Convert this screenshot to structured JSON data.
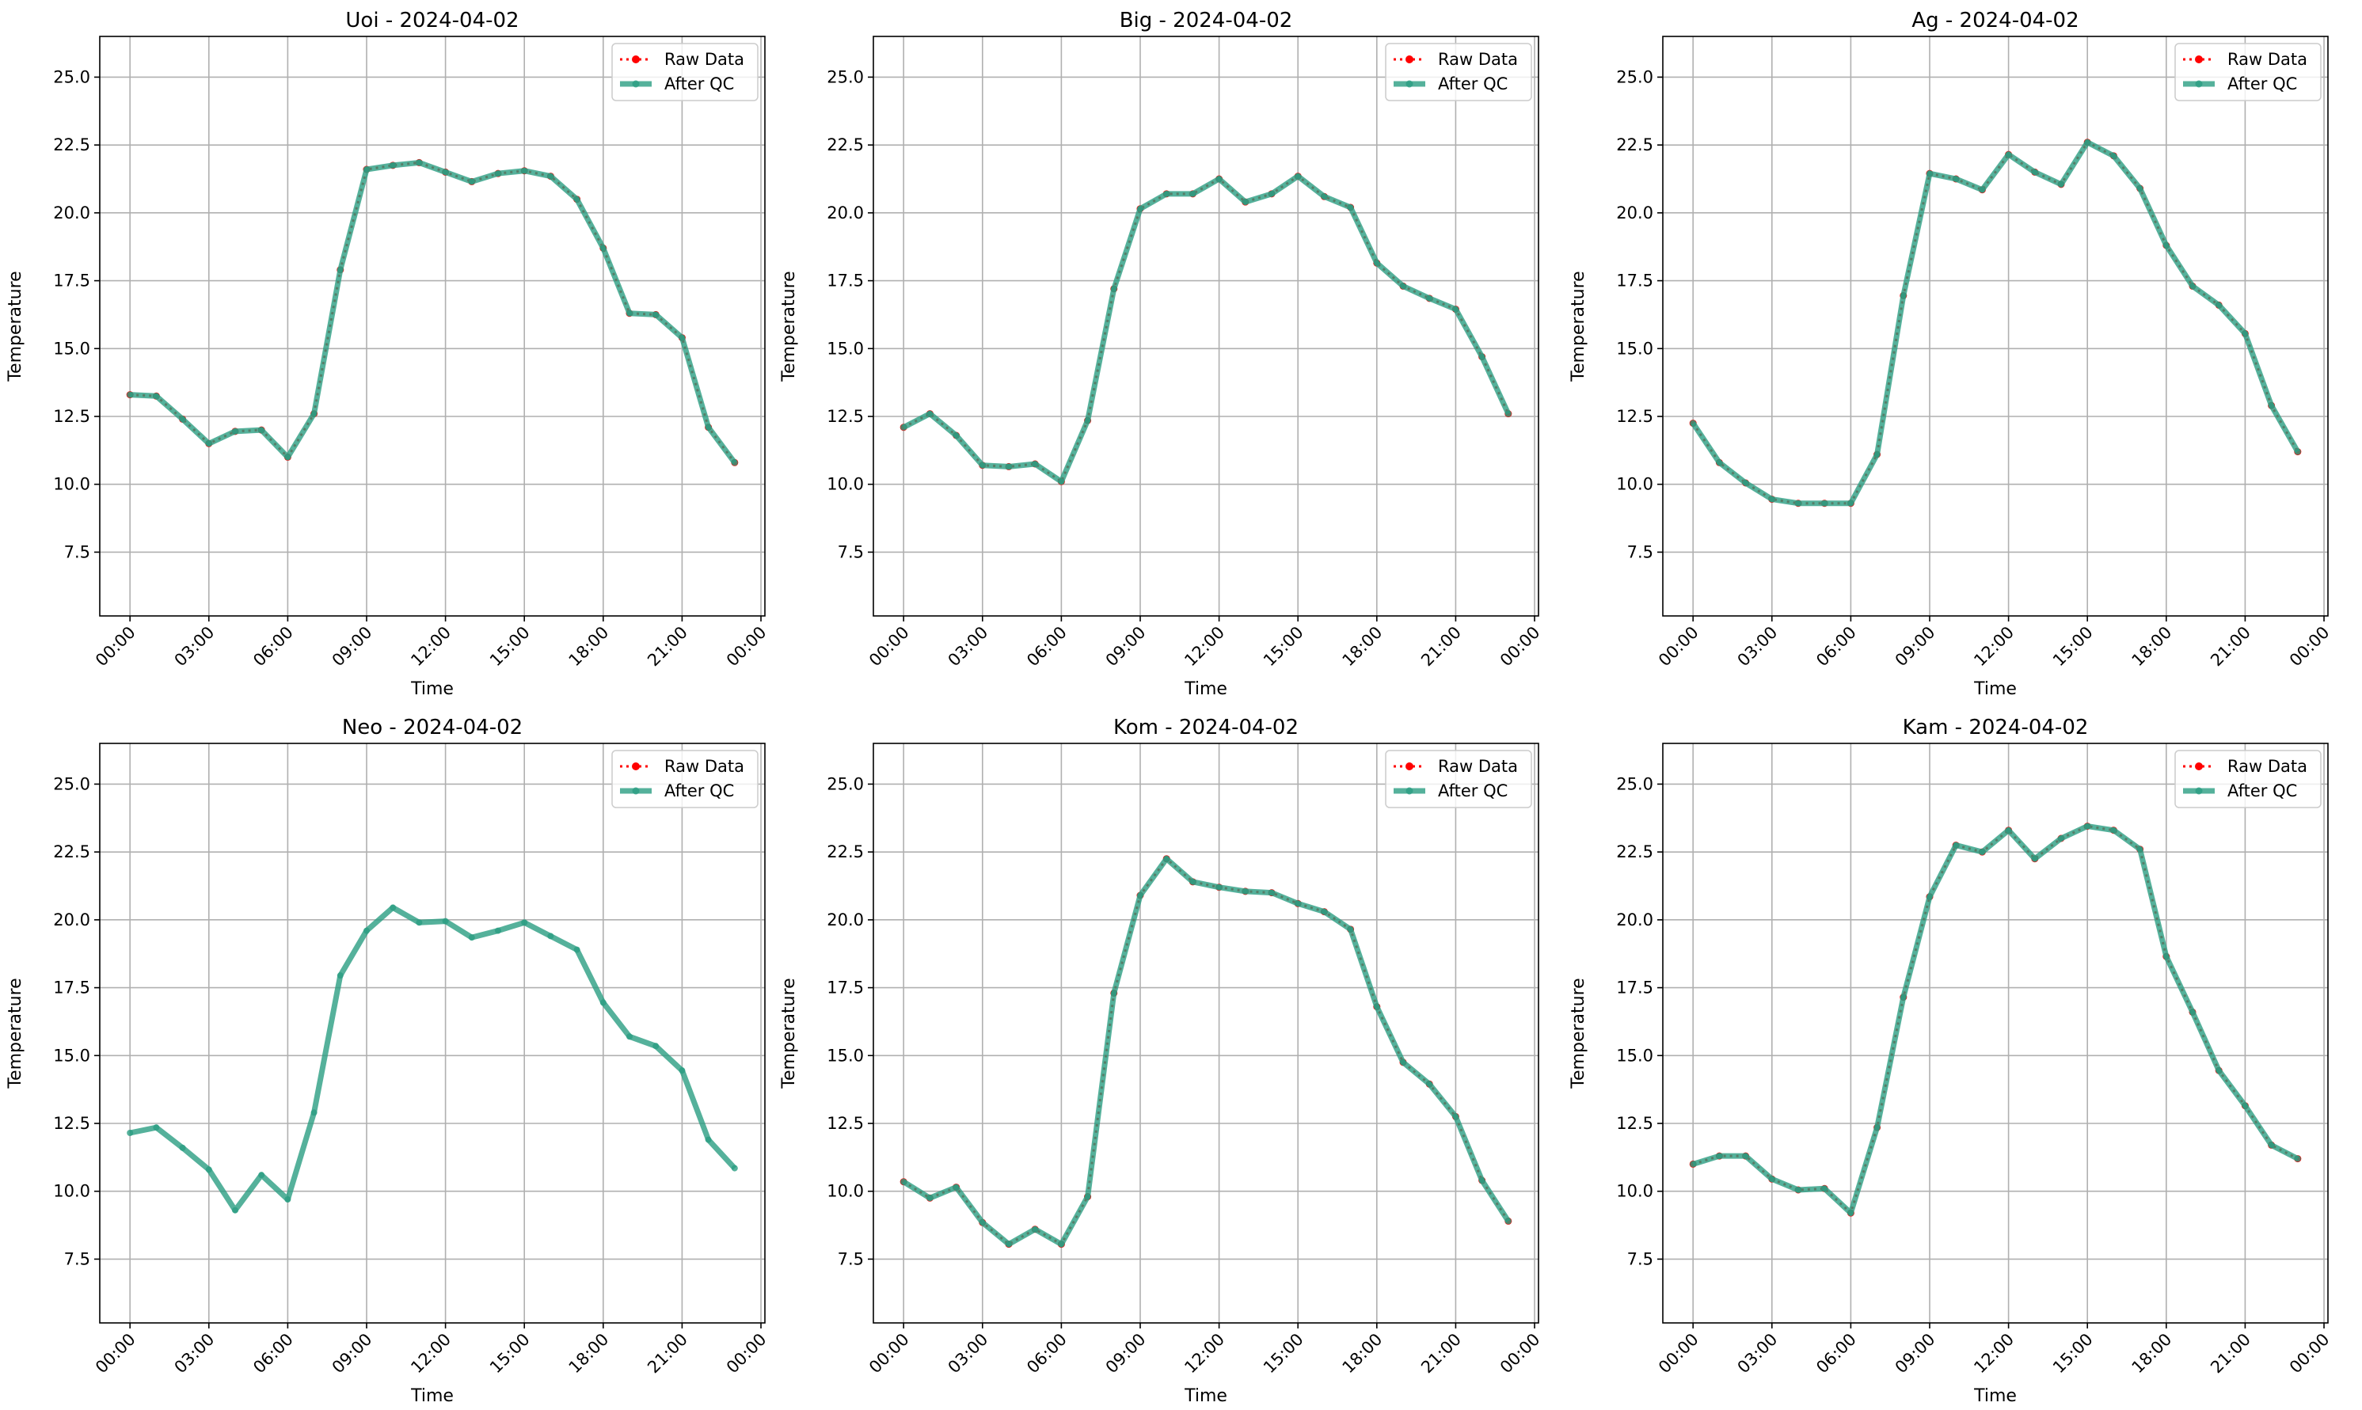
{
  "chart_data": [
    {
      "type": "line",
      "title": "Uoi - 2024-04-02",
      "xlabel": "Time",
      "ylabel": "Temperature",
      "x": [
        0,
        1,
        2,
        3,
        4,
        5,
        6,
        7,
        8,
        9,
        10,
        11,
        12,
        13,
        14,
        15,
        16,
        17,
        18,
        19,
        20,
        21,
        22,
        23
      ],
      "series": [
        {
          "name": "Raw Data",
          "color": "#ff0000",
          "values": [
            13.3,
            13.25,
            12.4,
            11.5,
            11.95,
            12.0,
            11.0,
            12.6,
            17.9,
            21.6,
            21.75,
            21.85,
            21.5,
            21.15,
            21.45,
            21.55,
            21.35,
            20.5,
            18.7,
            16.3,
            16.25,
            15.4,
            12.1,
            10.8
          ]
        },
        {
          "name": "After QC",
          "color": "#2a9d82",
          "values": [
            13.3,
            13.25,
            12.4,
            11.5,
            11.95,
            12.0,
            11.0,
            12.6,
            17.9,
            21.6,
            21.75,
            21.85,
            21.5,
            21.15,
            21.45,
            21.55,
            21.35,
            20.5,
            18.7,
            16.3,
            16.25,
            15.4,
            12.1,
            10.8
          ]
        }
      ],
      "xlim": [
        -1.15,
        24.15
      ],
      "xticks": [
        {
          "value": 0,
          "label": "00:00"
        },
        {
          "value": 3,
          "label": "03:00"
        },
        {
          "value": 6,
          "label": "06:00"
        },
        {
          "value": 9,
          "label": "09:00"
        },
        {
          "value": 12,
          "label": "12:00"
        },
        {
          "value": 15,
          "label": "15:00"
        },
        {
          "value": 18,
          "label": "18:00"
        },
        {
          "value": 21,
          "label": "21:00"
        },
        {
          "value": 24,
          "label": "00:00"
        }
      ],
      "ylim": [
        5.15,
        26.5
      ],
      "yticks": [
        7.5,
        {
          "value": 10,
          "label": "10.0"
        },
        12.5,
        {
          "value": 15,
          "label": "15.0"
        },
        17.5,
        {
          "value": 20,
          "label": "20.0"
        },
        22.5,
        {
          "value": 25,
          "label": "25.0"
        }
      ],
      "grid": true,
      "legend": "upper right"
    },
    {
      "type": "line",
      "title": "Big - 2024-04-02",
      "xlabel": "Time",
      "ylabel": "Temperature",
      "x": [
        0,
        1,
        2,
        3,
        4,
        5,
        6,
        7,
        8,
        9,
        10,
        11,
        12,
        13,
        14,
        15,
        16,
        17,
        18,
        19,
        20,
        21,
        22,
        23
      ],
      "series": [
        {
          "name": "Raw Data",
          "color": "#ff0000",
          "values": [
            12.1,
            12.6,
            11.8,
            10.7,
            10.65,
            10.75,
            10.1,
            12.35,
            17.2,
            20.15,
            20.7,
            20.7,
            21.25,
            20.4,
            20.7,
            21.35,
            20.6,
            20.2,
            18.15,
            17.3,
            16.85,
            16.45,
            14.7,
            12.6
          ]
        },
        {
          "name": "After QC",
          "color": "#2a9d82",
          "values": [
            12.1,
            12.6,
            11.8,
            10.7,
            10.65,
            10.75,
            10.1,
            12.35,
            17.2,
            20.15,
            20.7,
            20.7,
            21.25,
            20.4,
            20.7,
            21.35,
            20.6,
            20.2,
            18.15,
            17.3,
            16.85,
            16.45,
            14.7,
            12.6
          ]
        }
      ],
      "xlim": [
        -1.15,
        24.15
      ],
      "xticks": [
        {
          "value": 0,
          "label": "00:00"
        },
        {
          "value": 3,
          "label": "03:00"
        },
        {
          "value": 6,
          "label": "06:00"
        },
        {
          "value": 9,
          "label": "09:00"
        },
        {
          "value": 12,
          "label": "12:00"
        },
        {
          "value": 15,
          "label": "15:00"
        },
        {
          "value": 18,
          "label": "18:00"
        },
        {
          "value": 21,
          "label": "21:00"
        },
        {
          "value": 24,
          "label": "00:00"
        }
      ],
      "ylim": [
        5.15,
        26.5
      ],
      "yticks": [
        7.5,
        {
          "value": 10,
          "label": "10.0"
        },
        12.5,
        {
          "value": 15,
          "label": "15.0"
        },
        17.5,
        {
          "value": 20,
          "label": "20.0"
        },
        22.5,
        {
          "value": 25,
          "label": "25.0"
        }
      ],
      "grid": true,
      "legend": "upper right"
    },
    {
      "type": "line",
      "title": "Ag - 2024-04-02",
      "xlabel": "Time",
      "ylabel": "Temperature",
      "x": [
        0,
        1,
        2,
        3,
        4,
        5,
        6,
        7,
        8,
        9,
        10,
        11,
        12,
        13,
        14,
        15,
        16,
        17,
        18,
        19,
        20,
        21,
        22,
        23
      ],
      "series": [
        {
          "name": "Raw Data",
          "color": "#ff0000",
          "values": [
            12.25,
            10.8,
            10.05,
            9.45,
            9.3,
            9.3,
            9.3,
            11.1,
            16.95,
            21.45,
            21.25,
            20.85,
            22.15,
            21.5,
            21.05,
            22.6,
            22.1,
            20.9,
            18.8,
            17.3,
            16.6,
            15.55,
            12.9,
            11.2
          ]
        },
        {
          "name": "After QC",
          "color": "#2a9d82",
          "values": [
            12.25,
            10.8,
            10.05,
            9.45,
            9.3,
            9.3,
            9.3,
            11.1,
            16.95,
            21.45,
            21.25,
            20.85,
            22.15,
            21.5,
            21.05,
            22.6,
            22.1,
            20.9,
            18.8,
            17.3,
            16.6,
            15.55,
            12.9,
            11.2
          ]
        }
      ],
      "xlim": [
        -1.15,
        24.15
      ],
      "xticks": [
        {
          "value": 0,
          "label": "00:00"
        },
        {
          "value": 3,
          "label": "03:00"
        },
        {
          "value": 6,
          "label": "06:00"
        },
        {
          "value": 9,
          "label": "09:00"
        },
        {
          "value": 12,
          "label": "12:00"
        },
        {
          "value": 15,
          "label": "15:00"
        },
        {
          "value": 18,
          "label": "18:00"
        },
        {
          "value": 21,
          "label": "21:00"
        },
        {
          "value": 24,
          "label": "00:00"
        }
      ],
      "ylim": [
        5.15,
        26.5
      ],
      "yticks": [
        7.5,
        {
          "value": 10,
          "label": "10.0"
        },
        12.5,
        {
          "value": 15,
          "label": "15.0"
        },
        17.5,
        {
          "value": 20,
          "label": "20.0"
        },
        22.5,
        {
          "value": 25,
          "label": "25.0"
        }
      ],
      "grid": true,
      "legend": "upper right"
    },
    {
      "type": "line",
      "title": "Neo - 2024-04-02",
      "xlabel": "Time",
      "ylabel": "Temperature",
      "x": [
        0,
        1,
        2,
        3,
        4,
        5,
        6,
        7,
        8,
        9,
        10,
        11,
        12,
        13,
        14,
        15,
        16,
        17,
        18,
        19,
        20,
        21,
        22,
        23
      ],
      "series": [
        {
          "name": "Raw Data",
          "color": "#ff0000",
          "values": [
            null,
            null,
            null,
            null,
            null,
            null,
            null,
            null,
            null,
            null,
            null,
            null,
            null,
            null,
            null,
            null,
            null,
            null,
            null,
            null,
            null,
            null,
            null,
            null
          ]
        },
        {
          "name": "After QC",
          "color": "#2a9d82",
          "values": [
            12.15,
            12.35,
            11.6,
            10.8,
            9.3,
            10.6,
            9.7,
            12.9,
            17.95,
            19.6,
            20.45,
            19.9,
            19.95,
            19.35,
            19.6,
            19.9,
            19.4,
            18.9,
            16.95,
            15.7,
            15.35,
            14.45,
            11.9,
            10.85
          ]
        }
      ],
      "xlim": [
        -1.15,
        24.15
      ],
      "xticks": [
        {
          "value": 0,
          "label": "00:00"
        },
        {
          "value": 3,
          "label": "03:00"
        },
        {
          "value": 6,
          "label": "06:00"
        },
        {
          "value": 9,
          "label": "09:00"
        },
        {
          "value": 12,
          "label": "12:00"
        },
        {
          "value": 15,
          "label": "15:00"
        },
        {
          "value": 18,
          "label": "18:00"
        },
        {
          "value": 21,
          "label": "21:00"
        },
        {
          "value": 24,
          "label": "00:00"
        }
      ],
      "ylim": [
        5.15,
        26.5
      ],
      "yticks": [
        7.5,
        {
          "value": 10,
          "label": "10.0"
        },
        12.5,
        {
          "value": 15,
          "label": "15.0"
        },
        17.5,
        {
          "value": 20,
          "label": "20.0"
        },
        22.5,
        {
          "value": 25,
          "label": "25.0"
        }
      ],
      "grid": true,
      "legend": "upper right"
    },
    {
      "type": "line",
      "title": "Kom - 2024-04-02",
      "xlabel": "Time",
      "ylabel": "Temperature",
      "x": [
        0,
        1,
        2,
        3,
        4,
        5,
        6,
        7,
        8,
        9,
        10,
        11,
        12,
        13,
        14,
        15,
        16,
        17,
        18,
        19,
        20,
        21,
        22,
        23
      ],
      "series": [
        {
          "name": "Raw Data",
          "color": "#ff0000",
          "values": [
            10.35,
            9.75,
            10.15,
            8.85,
            8.05,
            8.6,
            8.05,
            9.8,
            17.3,
            20.9,
            22.25,
            21.4,
            21.2,
            21.05,
            21.0,
            20.6,
            20.3,
            19.65,
            16.8,
            14.75,
            13.95,
            12.75,
            10.4,
            8.9
          ]
        },
        {
          "name": "After QC",
          "color": "#2a9d82",
          "values": [
            10.35,
            9.75,
            10.15,
            8.85,
            8.05,
            8.6,
            8.05,
            9.8,
            17.3,
            20.9,
            22.25,
            21.4,
            21.2,
            21.05,
            21.0,
            20.6,
            20.3,
            19.65,
            16.8,
            14.75,
            13.95,
            12.75,
            10.4,
            8.9
          ]
        }
      ],
      "xlim": [
        -1.15,
        24.15
      ],
      "xticks": [
        {
          "value": 0,
          "label": "00:00"
        },
        {
          "value": 3,
          "label": "03:00"
        },
        {
          "value": 6,
          "label": "06:00"
        },
        {
          "value": 9,
          "label": "09:00"
        },
        {
          "value": 12,
          "label": "12:00"
        },
        {
          "value": 15,
          "label": "15:00"
        },
        {
          "value": 18,
          "label": "18:00"
        },
        {
          "value": 21,
          "label": "21:00"
        },
        {
          "value": 24,
          "label": "00:00"
        }
      ],
      "ylim": [
        5.15,
        26.5
      ],
      "yticks": [
        7.5,
        {
          "value": 10,
          "label": "10.0"
        },
        12.5,
        {
          "value": 15,
          "label": "15.0"
        },
        17.5,
        {
          "value": 20,
          "label": "20.0"
        },
        22.5,
        {
          "value": 25,
          "label": "25.0"
        }
      ],
      "grid": true,
      "legend": "upper right"
    },
    {
      "type": "line",
      "title": "Kam - 2024-04-02",
      "xlabel": "Time",
      "ylabel": "Temperature",
      "x": [
        0,
        1,
        2,
        3,
        4,
        5,
        6,
        7,
        8,
        9,
        10,
        11,
        12,
        13,
        14,
        15,
        16,
        17,
        18,
        19,
        20,
        21,
        22,
        23
      ],
      "series": [
        {
          "name": "Raw Data",
          "color": "#ff0000",
          "values": [
            11.0,
            11.3,
            11.3,
            10.45,
            10.05,
            10.1,
            9.2,
            12.35,
            17.15,
            20.85,
            22.75,
            22.5,
            23.3,
            22.25,
            23.0,
            23.45,
            23.3,
            22.6,
            18.65,
            16.6,
            14.45,
            13.15,
            11.7,
            11.2
          ]
        },
        {
          "name": "After QC",
          "color": "#2a9d82",
          "values": [
            11.0,
            11.3,
            11.3,
            10.45,
            10.05,
            10.1,
            9.2,
            12.35,
            17.15,
            20.85,
            22.75,
            22.5,
            23.3,
            22.25,
            23.0,
            23.45,
            23.3,
            22.6,
            18.65,
            16.6,
            14.45,
            13.15,
            11.7,
            11.2
          ]
        }
      ],
      "xlim": [
        -1.15,
        24.15
      ],
      "xticks": [
        {
          "value": 0,
          "label": "00:00"
        },
        {
          "value": 3,
          "label": "03:00"
        },
        {
          "value": 6,
          "label": "06:00"
        },
        {
          "value": 9,
          "label": "09:00"
        },
        {
          "value": 12,
          "label": "12:00"
        },
        {
          "value": 15,
          "label": "15:00"
        },
        {
          "value": 18,
          "label": "18:00"
        },
        {
          "value": 21,
          "label": "21:00"
        },
        {
          "value": 24,
          "label": "00:00"
        }
      ],
      "ylim": [
        5.15,
        26.5
      ],
      "yticks": [
        7.5,
        {
          "value": 10,
          "label": "10.0"
        },
        12.5,
        {
          "value": 15,
          "label": "15.0"
        },
        17.5,
        {
          "value": 20,
          "label": "20.0"
        },
        22.5,
        {
          "value": 25,
          "label": "25.0"
        }
      ],
      "grid": true,
      "legend": "upper right"
    }
  ]
}
